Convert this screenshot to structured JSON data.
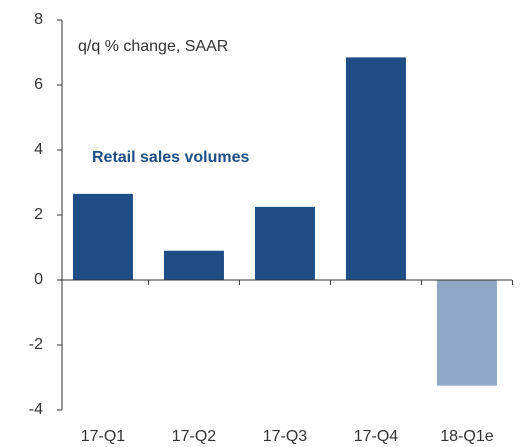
{
  "chart_data": {
    "type": "bar",
    "annotations": [
      "q/q % change, SAAR",
      "Retail  sales volumes"
    ],
    "categories": [
      "17-Q1",
      "17-Q2",
      "17-Q3",
      "17-Q4",
      "18-Q1e"
    ],
    "values": [
      2.65,
      0.9,
      2.25,
      6.85,
      -3.25
    ],
    "colors": [
      "#1f4e87",
      "#1f4e87",
      "#1f4e87",
      "#1f4e87",
      "#8fa8c8"
    ],
    "ylim": [
      -4,
      8
    ],
    "yticks": [
      -4,
      -2,
      0,
      2,
      4,
      6,
      8
    ],
    "grid": false
  }
}
